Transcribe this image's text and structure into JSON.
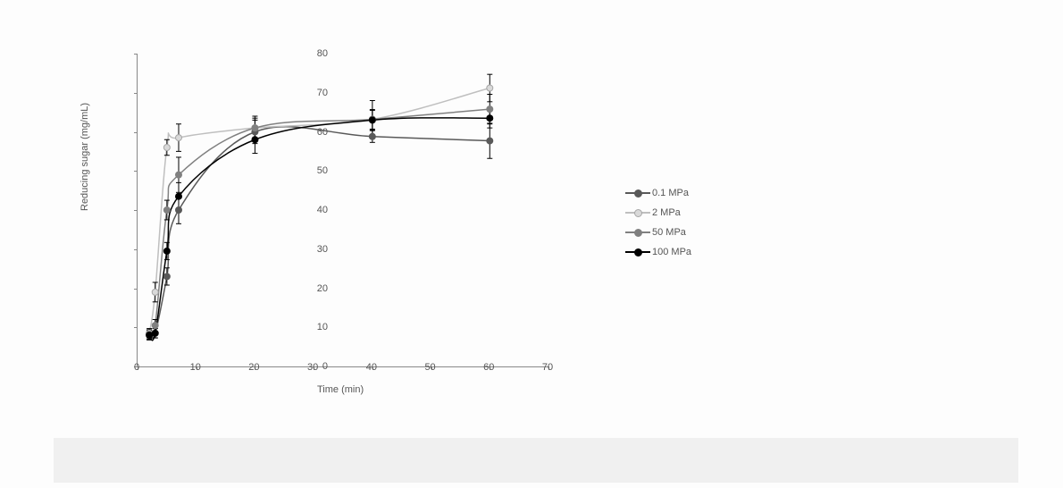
{
  "chart": {
    "type": "line-scatter-errorbar",
    "xlabel": "Time (min)",
    "ylabel": "Reducing sugar (mg/mL)",
    "label_fontsize": 11,
    "tick_fontsize": 11,
    "xlim": [
      0,
      70
    ],
    "ylim": [
      0,
      80
    ],
    "xtick_step": 10,
    "ytick_step": 10,
    "xticks": [
      0,
      10,
      20,
      30,
      40,
      50,
      60,
      70
    ],
    "yticks": [
      0,
      10,
      20,
      30,
      40,
      50,
      60,
      70,
      80
    ],
    "background_color": "#fdfdfd",
    "axis_color": "#888888",
    "text_color": "#555555",
    "errorbar_color": "#000000",
    "errorbar_cap_width": 6,
    "marker_size": 7,
    "line_width": 1.5,
    "series": [
      {
        "name": "0.1 MPa",
        "label": "0.1 MPa",
        "line_color": "#595959",
        "marker_fill": "#595959",
        "marker_stroke": "#595959",
        "x": [
          2,
          3,
          5,
          7,
          20,
          40,
          60
        ],
        "y": [
          8.0,
          8.5,
          23.0,
          40.0,
          60.0,
          58.8,
          57.7
        ],
        "err": [
          1.2,
          1.2,
          2.2,
          3.5,
          3.0,
          1.5,
          4.5
        ]
      },
      {
        "name": "2 MPa",
        "label": "2 MPa",
        "line_color": "#bfbfbf",
        "marker_fill": "#d9d9d9",
        "marker_stroke": "#a6a6a6",
        "x": [
          2,
          3,
          5,
          7,
          20,
          40,
          60
        ],
        "y": [
          8.5,
          19.0,
          56.0,
          58.5,
          61.0,
          63.2,
          71.2
        ],
        "err": [
          1.2,
          2.5,
          2.0,
          3.5,
          2.5,
          2.5,
          3.5
        ]
      },
      {
        "name": "50 MPa",
        "label": "50 MPa",
        "line_color": "#808080",
        "marker_fill": "#808080",
        "marker_stroke": "#808080",
        "x": [
          2,
          3,
          5,
          7,
          20,
          40,
          60
        ],
        "y": [
          8.2,
          10.5,
          40.0,
          49.0,
          61.0,
          63.2,
          65.8
        ],
        "err": [
          1.2,
          1.5,
          2.5,
          4.5,
          3.0,
          4.8,
          3.8
        ]
      },
      {
        "name": "100 MPa",
        "label": "100 MPa",
        "line_color": "#000000",
        "marker_fill": "#000000",
        "marker_stroke": "#000000",
        "x": [
          2,
          3,
          5,
          7,
          20,
          40,
          60
        ],
        "y": [
          8.0,
          8.5,
          29.5,
          43.5,
          58.0,
          63.0,
          63.5
        ],
        "err": [
          1.2,
          1.2,
          2.2,
          3.5,
          3.5,
          2.5,
          2.5
        ]
      }
    ],
    "legend": {
      "position": "right",
      "items": [
        "0.1 MPa",
        "2 MPa",
        "50 MPa",
        "100 MPa"
      ]
    },
    "smoothing_note": "Lines are drawn as smooth curves through the data points (not straight segments)."
  }
}
